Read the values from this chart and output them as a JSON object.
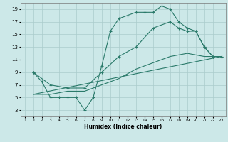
{
  "xlabel": "Humidex (Indice chaleur)",
  "xlim": [
    -0.5,
    23.5
  ],
  "ylim": [
    2,
    20
  ],
  "xticks": [
    0,
    1,
    2,
    3,
    4,
    5,
    6,
    7,
    8,
    9,
    10,
    11,
    12,
    13,
    14,
    15,
    16,
    17,
    18,
    19,
    20,
    21,
    22,
    23
  ],
  "yticks": [
    3,
    5,
    7,
    9,
    11,
    13,
    15,
    17,
    19
  ],
  "background_color": "#cce8e8",
  "grid_color": "#aacccc",
  "line_color": "#2a7a6a",
  "line1_x": [
    1,
    2,
    3,
    4,
    5,
    6,
    7,
    8,
    9,
    10,
    11,
    12,
    13,
    14,
    15,
    16,
    17,
    18,
    19,
    20,
    21,
    22,
    23
  ],
  "line1_y": [
    9,
    7.5,
    5,
    5,
    5,
    5,
    3,
    5,
    10,
    15.5,
    17.5,
    18,
    18.5,
    18.5,
    18.5,
    19.5,
    19,
    17,
    16,
    15.5,
    13,
    11.5,
    11.5
  ],
  "line2_x": [
    1,
    3,
    5,
    7,
    9,
    11,
    13,
    15,
    17,
    18,
    19,
    20,
    21,
    22,
    23
  ],
  "line2_y": [
    9,
    7,
    6.5,
    6.5,
    9,
    11.5,
    13,
    16,
    17,
    16,
    15.5,
    15.5,
    13,
    11.5,
    11.5
  ],
  "line3_x": [
    1,
    3,
    5,
    7,
    9,
    11,
    13,
    15,
    17,
    19,
    21,
    23
  ],
  "line3_y": [
    5.5,
    5.5,
    6,
    6,
    7,
    8,
    9.5,
    10.5,
    11.5,
    12,
    11.5,
    11.5
  ],
  "line4_x": [
    1,
    23
  ],
  "line4_y": [
    5.5,
    11.5
  ]
}
